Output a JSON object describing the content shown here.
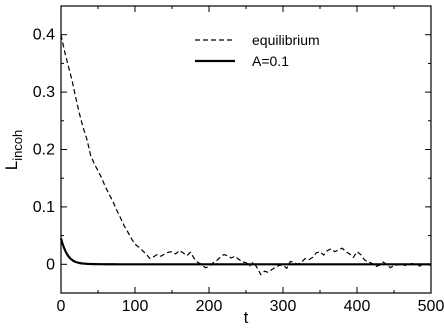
{
  "chart_data": {
    "type": "line",
    "xlabel": "t",
    "ylabel_main": "L",
    "ylabel_sub": "incoh",
    "xlim": [
      0,
      500
    ],
    "ylim": [
      -0.05,
      0.45
    ],
    "xticks": [
      0,
      100,
      200,
      300,
      400,
      500
    ],
    "yticks": [
      0,
      0.1,
      0.2,
      0.3,
      0.4
    ],
    "xtick_labels": [
      "0",
      "100",
      "200",
      "300",
      "400",
      "500"
    ],
    "ytick_labels": [
      "0",
      "0.1",
      "0.2",
      "0.3",
      "0.4"
    ],
    "grid": false,
    "legend_position": "top-center",
    "series": [
      {
        "name": "equilibrium",
        "style": "dashed",
        "color": "#000000",
        "x": [
          0,
          5,
          10,
          15,
          20,
          25,
          30,
          35,
          40,
          45,
          50,
          55,
          60,
          65,
          70,
          75,
          80,
          85,
          90,
          95,
          100,
          105,
          110,
          115,
          120,
          125,
          130,
          135,
          140,
          145,
          150,
          155,
          160,
          165,
          170,
          175,
          180,
          185,
          190,
          195,
          200,
          205,
          210,
          215,
          220,
          225,
          230,
          235,
          240,
          245,
          250,
          255,
          260,
          265,
          270,
          275,
          280,
          285,
          290,
          295,
          300,
          305,
          310,
          315,
          320,
          325,
          330,
          335,
          340,
          345,
          350,
          355,
          360,
          365,
          370,
          375,
          380,
          385,
          390,
          395,
          400,
          405,
          410,
          415,
          420,
          425,
          430,
          435,
          440,
          445,
          450,
          455,
          460,
          465,
          470,
          475,
          480,
          485,
          490,
          495,
          500
        ],
        "values": [
          0.4,
          0.37,
          0.345,
          0.32,
          0.29,
          0.262,
          0.238,
          0.218,
          0.19,
          0.175,
          0.163,
          0.15,
          0.135,
          0.122,
          0.11,
          0.095,
          0.082,
          0.068,
          0.057,
          0.045,
          0.035,
          0.03,
          0.024,
          0.018,
          0.01,
          0.013,
          0.017,
          0.014,
          0.018,
          0.021,
          0.022,
          0.018,
          0.024,
          0.02,
          0.015,
          0.021,
          0.01,
          0.003,
          0.0,
          -0.006,
          -0.004,
          0.002,
          0.006,
          0.012,
          0.017,
          0.015,
          0.011,
          0.014,
          0.009,
          0.004,
          0.003,
          -0.003,
          0.004,
          -0.006,
          -0.018,
          -0.012,
          -0.014,
          -0.009,
          -0.005,
          -0.002,
          -0.001,
          -0.007,
          0.005,
          0.003,
          0.0,
          0.004,
          0.01,
          0.008,
          0.012,
          0.02,
          0.022,
          0.016,
          0.024,
          0.027,
          0.022,
          0.025,
          0.028,
          0.022,
          0.018,
          0.012,
          0.022,
          0.017,
          0.008,
          0.004,
          0.002,
          -0.004,
          -0.002,
          0.004,
          0.0,
          -0.006,
          -0.002,
          -0.001,
          0.0,
          -0.002,
          0.002,
          0.001,
          -0.001,
          -0.003,
          0.001,
          0.0,
          -0.002
        ]
      },
      {
        "name": "A=0.1",
        "style": "solid",
        "color": "#000000",
        "x": [
          0,
          2,
          4,
          6,
          8,
          10,
          12,
          14,
          16,
          18,
          20,
          24,
          28,
          32,
          36,
          40,
          46,
          52,
          60,
          70,
          80,
          100,
          150,
          200,
          300,
          400,
          500
        ],
        "values": [
          0.045,
          0.036,
          0.029,
          0.023,
          0.018,
          0.014,
          0.011,
          0.0085,
          0.0066,
          0.0051,
          0.004,
          0.0025,
          0.0016,
          0.0011,
          0.0007,
          0.0005,
          0.0003,
          0.00015,
          0.0001,
          5e-05,
          0.0,
          0.0,
          0.0,
          0.0,
          0.0,
          0.0,
          0.0
        ]
      }
    ]
  }
}
